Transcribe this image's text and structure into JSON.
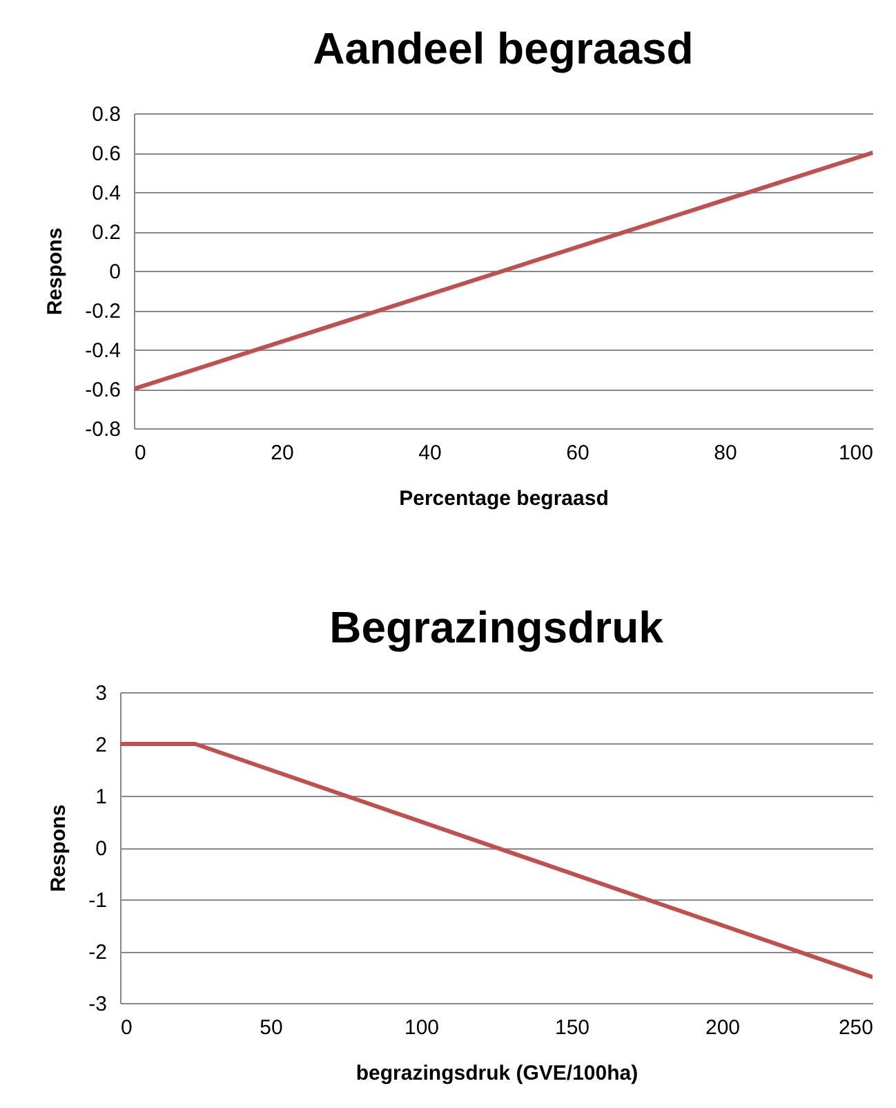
{
  "chart_data": [
    {
      "type": "line",
      "title": "Aandeel begraasd",
      "xlabel": "Percentage begraasd",
      "ylabel": "Respons",
      "series": [
        {
          "color": "#c0504d",
          "x": [
            0,
            100
          ],
          "values": [
            -0.6,
            0.6
          ]
        }
      ],
      "xlim": [
        0,
        100
      ],
      "xticks": [
        0,
        20,
        40,
        60,
        80,
        100
      ],
      "ylim": [
        -0.8,
        0.8
      ],
      "yticks": [
        -0.8,
        -0.6,
        -0.4,
        -0.2,
        0,
        0.2,
        0.4,
        0.6,
        0.8
      ],
      "grid": "y"
    },
    {
      "type": "line",
      "title": "Begrazingsdruk",
      "xlabel": "begrazingsdruk (GVE/100ha)",
      "ylabel": "Respons",
      "series": [
        {
          "color": "#c0504d",
          "x": [
            0,
            25,
            250
          ],
          "values": [
            2,
            2,
            -2.5
          ]
        }
      ],
      "xlim": [
        0,
        250
      ],
      "xticks": [
        0,
        50,
        100,
        150,
        200,
        250
      ],
      "ylim": [
        -3,
        3
      ],
      "yticks": [
        -3,
        -2,
        -1,
        0,
        1,
        2,
        3
      ],
      "grid": "y"
    }
  ]
}
